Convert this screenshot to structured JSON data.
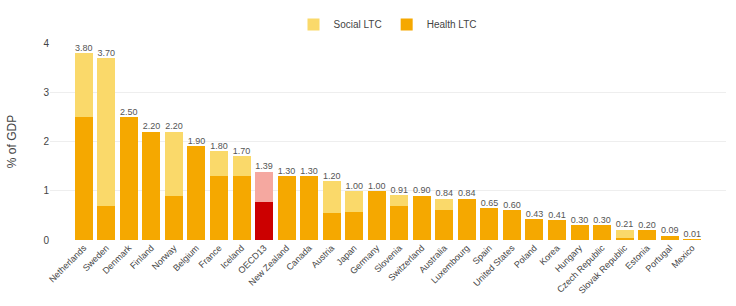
{
  "chart_data": {
    "type": "bar",
    "stacked": true,
    "categories": [
      "Netherlands",
      "Sweden",
      "Denmark",
      "Finland",
      "Norway",
      "Belgium",
      "France",
      "Iceland",
      "OECD13",
      "New Zealand",
      "Canada",
      "Austria",
      "Japan",
      "Germany",
      "Slovenia",
      "Switzerland",
      "Australia",
      "Luxembourg",
      "Spain",
      "United States",
      "Poland",
      "Korea",
      "Hungary",
      "Czech Republic",
      "Slovak Republic",
      "Estonia",
      "Portugal",
      "Mexico"
    ],
    "series": [
      {
        "name": "Health LTC",
        "values": [
          2.5,
          0.7,
          2.5,
          2.2,
          0.9,
          1.9,
          1.3,
          1.3,
          0.77,
          1.3,
          1.3,
          0.55,
          0.57,
          1.0,
          0.7,
          0.9,
          0.6,
          0.84,
          0.65,
          0.6,
          0.43,
          0.41,
          0.3,
          0.3,
          0.05,
          0.2,
          0.09,
          0.01
        ],
        "colors": [
          "#F5A800",
          "#F5A800",
          "#F5A800",
          "#F5A800",
          "#F5A800",
          "#F5A800",
          "#F5A800",
          "#F5A800",
          "#CC0000",
          "#F5A800",
          "#F5A800",
          "#F5A800",
          "#F5A800",
          "#F5A800",
          "#F5A800",
          "#F5A800",
          "#F5A800",
          "#F5A800",
          "#F5A800",
          "#F5A800",
          "#F5A800",
          "#F5A800",
          "#F5A800",
          "#F5A800",
          "#F5A800",
          "#F5A800",
          "#F5A800",
          "#F5A800"
        ]
      },
      {
        "name": "Social LTC",
        "values": [
          1.3,
          3.0,
          0.0,
          0.0,
          1.3,
          0.0,
          0.5,
          0.4,
          0.62,
          0.0,
          0.0,
          0.65,
          0.43,
          0.0,
          0.21,
          0.0,
          0.24,
          0.0,
          0.0,
          0.0,
          0.0,
          0.0,
          0.0,
          0.0,
          0.16,
          0.0,
          0.0,
          0.0
        ],
        "colors": [
          "#FAD96A",
          "#FAD96A",
          "#FAD96A",
          "#FAD96A",
          "#FAD96A",
          "#FAD96A",
          "#FAD96A",
          "#FAD96A",
          "#F5A8A0",
          "#FAD96A",
          "#FAD96A",
          "#FAD96A",
          "#FAD96A",
          "#FAD96A",
          "#FAD96A",
          "#FAD96A",
          "#FAD96A",
          "#FAD96A",
          "#FAD96A",
          "#FAD96A",
          "#FAD96A",
          "#FAD96A",
          "#FAD96A",
          "#FAD96A",
          "#FAD96A",
          "#FAD96A",
          "#FAD96A",
          "#FAD96A"
        ]
      }
    ],
    "totals": [
      3.8,
      3.7,
      2.5,
      2.2,
      2.2,
      1.9,
      1.8,
      1.7,
      1.39,
      1.3,
      1.3,
      1.2,
      1.0,
      1.0,
      0.91,
      0.9,
      0.84,
      0.84,
      0.65,
      0.6,
      0.43,
      0.41,
      0.3,
      0.3,
      0.21,
      0.2,
      0.09,
      0.01
    ],
    "total_labels": [
      "3.80",
      "3.70",
      "2.50",
      "2.20",
      "2.20",
      "1.90",
      "1.80",
      "1.70",
      "1.39",
      "1.30",
      "1.30",
      "1.20",
      "1.00",
      "1.00",
      "0.91",
      "0.90",
      "0.84",
      "0.84",
      "0.65",
      "0.60",
      "0.43",
      "0.41",
      "0.30",
      "0.30",
      "0.21",
      "0.20",
      "0.09",
      "0.01"
    ],
    "ylabel": "% of GDP",
    "ylim": [
      0,
      4
    ],
    "yticks": [
      0,
      1,
      2,
      3,
      4
    ],
    "grid": true,
    "legend": "top"
  }
}
